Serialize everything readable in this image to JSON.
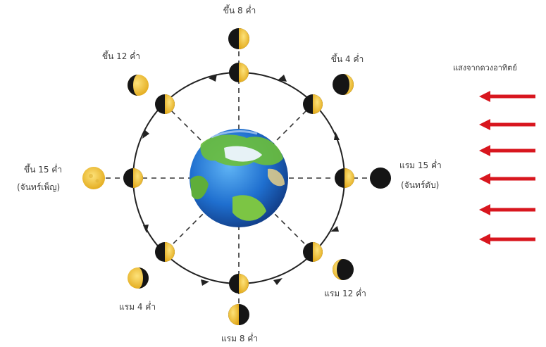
{
  "labels": {
    "top_outer": "ขึ้น 8 ค่ำ",
    "upper_right_outer": "ขึ้น 4 ค่ำ",
    "upper_left_outer": "ขึ้น 12 ค่ำ",
    "left_outer_line1": "ขึ้น 15 ค่ำ",
    "left_outer_line2": "(จันทร์เพ็ญ)",
    "right_outer_line1": "แรม 15 ค่ำ",
    "right_outer_line2": "(จันทร์ดับ)",
    "lower_left_outer": "แรม 4 ค่ำ",
    "lower_right_outer": "แรม 12 ค่ำ",
    "bottom_outer": "แรม 8 ค่ำ",
    "sunlight": "แสงจากดวงอาทิตย์"
  },
  "colors": {
    "moon_lit": "#f2c51c",
    "moon_dark": "#151515",
    "orbit": "#222222",
    "dash": "#333333",
    "arrow_red": "#d8161e",
    "earth_ocean": "#1f6fcf",
    "earth_land": "#6cbf3a",
    "text": "#3a3a3a"
  },
  "sunlight_arrow_count": 6
}
